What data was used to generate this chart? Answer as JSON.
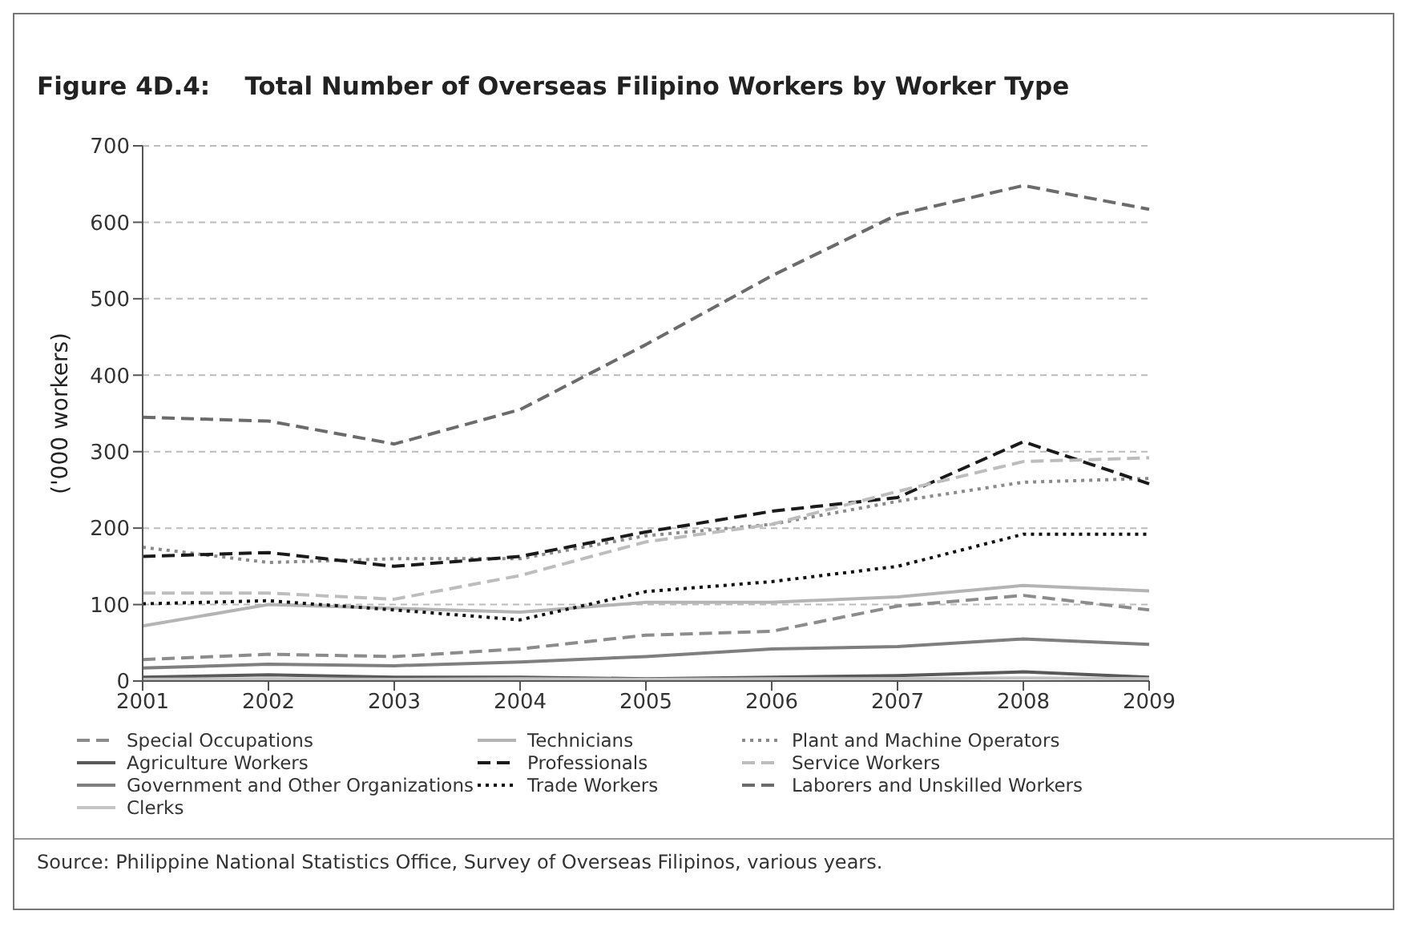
{
  "chart_data": {
    "type": "line",
    "title": "Figure 4D.4:    Total Number of Overseas Filipino Workers by Worker Type",
    "ylabel": "('000 workers)",
    "categories": [
      "2001",
      "2002",
      "2003",
      "2004",
      "2005",
      "2006",
      "2007",
      "2008",
      "2009"
    ],
    "series": [
      {
        "name": "Special Occupations",
        "color": "#8c8c8c",
        "line_style": "dashed",
        "values": [
          28,
          35,
          32,
          42,
          60,
          65,
          98,
          112,
          93
        ]
      },
      {
        "name": "Technicians",
        "color": "#b4b4b4",
        "line_style": "solid",
        "values": [
          72,
          100,
          95,
          90,
          103,
          103,
          110,
          125,
          118
        ]
      },
      {
        "name": "Plant and Machine Operators",
        "color": "#8a8a8a",
        "line_style": "dotted",
        "values": [
          175,
          155,
          160,
          160,
          190,
          205,
          235,
          260,
          265
        ]
      },
      {
        "name": "Agriculture Workers",
        "color": "#595959",
        "line_style": "solid",
        "values": [
          5,
          8,
          5,
          5,
          3,
          5,
          7,
          12,
          5
        ]
      },
      {
        "name": "Professionals",
        "color": "#1a1a1a",
        "line_style": "dashed",
        "values": [
          163,
          168,
          150,
          163,
          195,
          222,
          240,
          313,
          258
        ]
      },
      {
        "name": "Service Workers",
        "color": "#bdbdbd",
        "line_style": "dashed",
        "values": [
          115,
          115,
          107,
          138,
          182,
          205,
          248,
          287,
          292
        ]
      },
      {
        "name": "Government and Other Organizations",
        "color": "#7f7f7f",
        "line_style": "solid",
        "values": [
          17,
          22,
          20,
          25,
          32,
          42,
          45,
          55,
          48
        ]
      },
      {
        "name": "Trade Workers",
        "color": "#111111",
        "line_style": "dotted",
        "values": [
          101,
          105,
          93,
          80,
          117,
          130,
          150,
          192,
          192
        ]
      },
      {
        "name": "Laborers and Unskilled Workers",
        "color": "#6b6b6b",
        "line_style": "dashed",
        "values": [
          345,
          340,
          310,
          355,
          440,
          530,
          610,
          648,
          617
        ]
      },
      {
        "name": "Clerks",
        "color": "#c4c4c4",
        "line_style": "solid",
        "values": [
          2,
          3,
          2,
          3,
          2,
          3,
          3,
          4,
          3
        ]
      }
    ],
    "ylim": [
      0,
      700
    ],
    "yticks": [
      0,
      100,
      200,
      300,
      400,
      500,
      600,
      700
    ],
    "grid": "y",
    "legend": "bottom",
    "marker": "none",
    "annotations": [
      "Source: Philippine National Statistics Office, Survey of Overseas Filipinos, various years."
    ]
  }
}
